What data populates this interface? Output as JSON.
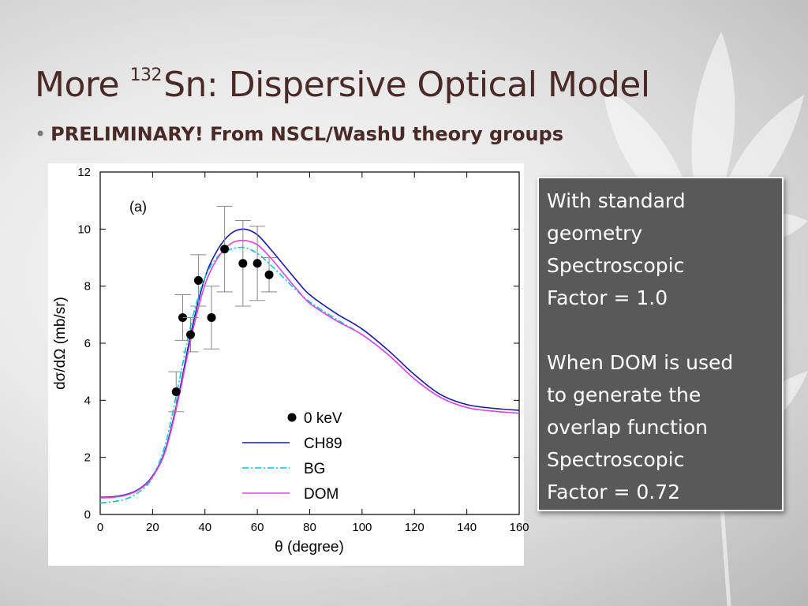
{
  "slide": {
    "title_prefix": "More ",
    "title_sup": "132",
    "title_suffix": "Sn: Dispersive Optical Model",
    "bullet": "PRELIMINARY!  From NSCL/WashU theory groups"
  },
  "note": {
    "line1": "With standard",
    "line2": "geometry",
    "line3": "Spectroscopic",
    "line4": "Factor = 1.0",
    "line5": "When DOM is used",
    "line6": "to generate the",
    "line7": "overlap function",
    "line8": "Spectroscopic",
    "line9": "Factor = 0.72"
  },
  "chart_data": {
    "type": "scatter",
    "panel_label": "(a)",
    "xlabel": "θ (degree)",
    "ylabel": "dσ/dΩ (mb/sr)",
    "xlim": [
      0,
      160
    ],
    "ylim": [
      0,
      12
    ],
    "xticks": [
      0,
      20,
      40,
      60,
      80,
      100,
      120,
      140,
      160
    ],
    "yticks": [
      0,
      2,
      4,
      6,
      8,
      10,
      12
    ],
    "legend_position": "bottom-center",
    "points": {
      "name": "0 keV",
      "color": "#000000",
      "data": [
        {
          "x": 29,
          "y": 4.3,
          "err": 0.7
        },
        {
          "x": 31.5,
          "y": 6.9,
          "err": 0.8
        },
        {
          "x": 34.5,
          "y": 6.3,
          "err": 0.6
        },
        {
          "x": 37.5,
          "y": 8.2,
          "err": 0.9
        },
        {
          "x": 42.5,
          "y": 6.9,
          "err": 1.1
        },
        {
          "x": 47.5,
          "y": 9.3,
          "err": 1.5
        },
        {
          "x": 54.5,
          "y": 8.8,
          "err": 1.5
        },
        {
          "x": 60,
          "y": 8.8,
          "err": 1.3
        },
        {
          "x": 64.5,
          "y": 8.4,
          "err": 0.6
        }
      ]
    },
    "series": [
      {
        "name": "CH89",
        "color": "#1a1aa0",
        "dash": "",
        "x": [
          0,
          5,
          10,
          15,
          20,
          25,
          30,
          35,
          40,
          45,
          50,
          55,
          60,
          65,
          70,
          75,
          80,
          90,
          100,
          110,
          120,
          130,
          140,
          150,
          160
        ],
        "y": [
          0.6,
          0.62,
          0.7,
          0.9,
          1.35,
          2.3,
          4.2,
          6.5,
          8.3,
          9.3,
          9.85,
          10.0,
          9.8,
          9.3,
          8.75,
          8.2,
          7.7,
          7.05,
          6.5,
          5.75,
          4.9,
          4.2,
          3.85,
          3.72,
          3.65
        ]
      },
      {
        "name": "BG",
        "color": "#00c8d8",
        "dash": "8,3,2,3",
        "x": [
          0,
          5,
          10,
          15,
          20,
          25,
          30,
          35,
          40,
          45,
          50,
          55,
          60,
          65,
          70,
          75,
          80,
          90,
          100,
          110,
          120,
          130,
          140,
          150,
          160
        ],
        "y": [
          0.4,
          0.45,
          0.55,
          0.8,
          1.3,
          2.5,
          4.6,
          6.8,
          8.3,
          9.05,
          9.3,
          9.35,
          9.15,
          8.75,
          8.3,
          7.85,
          7.45,
          6.85,
          6.3,
          5.6,
          4.75,
          4.1,
          3.75,
          3.62,
          3.55
        ]
      },
      {
        "name": "DOM",
        "color": "#dd44dd",
        "dash": "",
        "x": [
          0,
          5,
          10,
          15,
          20,
          25,
          30,
          35,
          40,
          45,
          50,
          55,
          60,
          65,
          70,
          75,
          80,
          90,
          100,
          110,
          120,
          130,
          140,
          150,
          160
        ],
        "y": [
          0.58,
          0.6,
          0.68,
          0.88,
          1.32,
          2.25,
          4.1,
          6.3,
          8.05,
          9.0,
          9.5,
          9.6,
          9.45,
          9.0,
          8.45,
          7.9,
          7.4,
          6.8,
          6.3,
          5.6,
          4.75,
          4.1,
          3.75,
          3.62,
          3.55
        ]
      }
    ]
  }
}
